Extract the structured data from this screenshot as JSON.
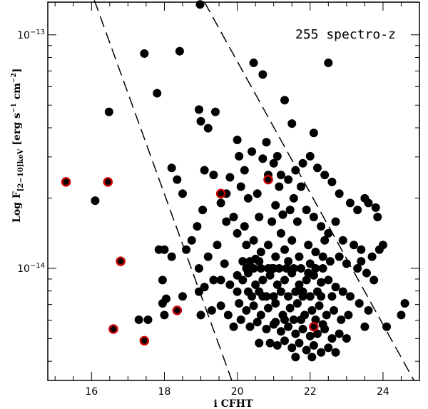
{
  "chart_data": {
    "type": "scatter",
    "title": "",
    "annotation": "255 spectro-z",
    "xlabel": "i CFHT",
    "ylabel": {
      "prefix": "Log F",
      "subscript": "[2−10]keV",
      "units": "[erg s",
      "exp1": "−1",
      "units2": " cm",
      "exp2": "−2",
      "close": "]"
    },
    "xlim": [
      14.8,
      25.0
    ],
    "ylim_log10": [
      -14.48,
      -12.86
    ],
    "x_ticks": [
      {
        "value": 16,
        "label": "16"
      },
      {
        "value": 18,
        "label": "18"
      },
      {
        "value": 20,
        "label": "20"
      },
      {
        "value": 22,
        "label": "22"
      },
      {
        "value": 24,
        "label": "24"
      }
    ],
    "y_ticks": [
      {
        "value_log10": -13,
        "base": "10",
        "exp": "−13"
      },
      {
        "value_log10": -14,
        "base": "10",
        "exp": "−14"
      }
    ],
    "colors": {
      "point": "#000000",
      "highlight": "#cc0000",
      "axis": "#000000"
    },
    "dashed_lines": [
      {
        "name": "lower-limit-line",
        "points": [
          [
            14.8,
            -12.3
          ],
          [
            19.85,
            -14.48
          ]
        ]
      },
      {
        "name": "upper-limit-line",
        "points": [
          [
            19.1,
            -12.86
          ],
          [
            24.85,
            -14.48
          ]
        ]
      }
    ],
    "series": [
      {
        "name": "black",
        "points": [
          [
            18.98,
            -12.87
          ],
          [
            16.48,
            -13.33
          ],
          [
            22.1,
            -13.42
          ],
          [
            17.45,
            -13.08
          ],
          [
            18.42,
            -13.07
          ],
          [
            22.5,
            -13.12
          ],
          [
            20.45,
            -13.12
          ],
          [
            20.7,
            -13.17
          ],
          [
            17.8,
            -13.25
          ],
          [
            18.95,
            -13.32
          ],
          [
            19.0,
            -13.37
          ],
          [
            19.4,
            -13.33
          ],
          [
            21.3,
            -13.28
          ],
          [
            19.2,
            -13.4
          ],
          [
            20.0,
            -13.45
          ],
          [
            21.5,
            -13.38
          ],
          [
            16.1,
            -13.71
          ],
          [
            18.2,
            -13.57
          ],
          [
            18.35,
            -13.62
          ],
          [
            18.5,
            -13.68
          ],
          [
            19.1,
            -13.58
          ],
          [
            19.35,
            -13.6
          ],
          [
            19.05,
            -13.75
          ],
          [
            18.9,
            -13.82
          ],
          [
            19.55,
            -13.72
          ],
          [
            19.8,
            -13.61
          ],
          [
            20.2,
            -13.58
          ],
          [
            20.4,
            -13.5
          ],
          [
            20.8,
            -13.46
          ],
          [
            20.7,
            -13.53
          ],
          [
            21.0,
            -13.55
          ],
          [
            21.2,
            -13.6
          ],
          [
            21.4,
            -13.62
          ],
          [
            21.6,
            -13.58
          ],
          [
            21.8,
            -13.55
          ],
          [
            22.0,
            -13.52
          ],
          [
            22.2,
            -13.57
          ],
          [
            22.4,
            -13.6
          ],
          [
            22.6,
            -13.63
          ],
          [
            22.8,
            -13.68
          ],
          [
            23.1,
            -13.72
          ],
          [
            23.3,
            -13.75
          ],
          [
            23.5,
            -13.7
          ],
          [
            23.6,
            -13.72
          ],
          [
            23.8,
            -13.74
          ],
          [
            20.1,
            -13.65
          ],
          [
            20.3,
            -13.7
          ],
          [
            20.55,
            -13.68
          ],
          [
            19.7,
            -13.8
          ],
          [
            19.9,
            -13.78
          ],
          [
            20.6,
            -13.78
          ],
          [
            21.05,
            -13.73
          ],
          [
            21.25,
            -13.77
          ],
          [
            21.45,
            -13.75
          ],
          [
            21.65,
            -13.8
          ],
          [
            21.9,
            -13.75
          ],
          [
            22.1,
            -13.78
          ],
          [
            22.3,
            -13.82
          ],
          [
            22.5,
            -13.85
          ],
          [
            22.7,
            -13.8
          ],
          [
            22.9,
            -13.88
          ],
          [
            23.2,
            -13.9
          ],
          [
            23.4,
            -13.92
          ],
          [
            23.9,
            -13.92
          ],
          [
            24.0,
            -13.9
          ],
          [
            23.7,
            -13.95
          ],
          [
            17.85,
            -13.92
          ],
          [
            18.0,
            -13.92
          ],
          [
            17.95,
            -14.05
          ],
          [
            18.75,
            -13.88
          ],
          [
            18.6,
            -13.92
          ],
          [
            18.2,
            -13.95
          ],
          [
            19.2,
            -13.95
          ],
          [
            19.45,
            -13.9
          ],
          [
            19.65,
            -13.98
          ],
          [
            20.0,
            -13.85
          ],
          [
            20.25,
            -13.9
          ],
          [
            20.45,
            -13.88
          ],
          [
            20.65,
            -13.93
          ],
          [
            20.85,
            -13.9
          ],
          [
            21.05,
            -13.95
          ],
          [
            21.3,
            -13.92
          ],
          [
            21.5,
            -13.88
          ],
          [
            21.7,
            -13.95
          ],
          [
            21.95,
            -13.9
          ],
          [
            22.15,
            -13.93
          ],
          [
            22.35,
            -13.95
          ],
          [
            22.55,
            -13.97
          ],
          [
            22.8,
            -13.95
          ],
          [
            23.0,
            -13.98
          ],
          [
            23.3,
            -14.0
          ],
          [
            23.55,
            -14.02
          ],
          [
            23.75,
            -14.05
          ],
          [
            17.95,
            -14.15
          ],
          [
            18.05,
            -14.13
          ],
          [
            18.95,
            -14.1
          ],
          [
            19.1,
            -14.08
          ],
          [
            19.35,
            -14.05
          ],
          [
            19.55,
            -14.05
          ],
          [
            19.8,
            -14.07
          ],
          [
            20.0,
            -14.03
          ],
          [
            20.15,
            -14.05
          ],
          [
            20.3,
            -14.02
          ],
          [
            20.5,
            -14.07
          ],
          [
            20.7,
            -14.05
          ],
          [
            20.9,
            -14.03
          ],
          [
            21.1,
            -14.07
          ],
          [
            21.3,
            -14.05
          ],
          [
            21.5,
            -14.02
          ],
          [
            21.7,
            -14.07
          ],
          [
            21.9,
            -14.05
          ],
          [
            22.1,
            -14.03
          ],
          [
            22.3,
            -14.06
          ],
          [
            22.5,
            -14.05
          ],
          [
            22.7,
            -14.08
          ],
          [
            22.9,
            -14.1
          ],
          [
            23.1,
            -14.12
          ],
          [
            23.35,
            -14.15
          ],
          [
            23.6,
            -14.18
          ],
          [
            24.6,
            -14.15
          ],
          [
            24.5,
            -14.2
          ],
          [
            19.0,
            -14.2
          ],
          [
            19.3,
            -14.18
          ],
          [
            19.55,
            -14.16
          ],
          [
            19.75,
            -14.2
          ],
          [
            20.05,
            -14.15
          ],
          [
            20.25,
            -14.18
          ],
          [
            20.45,
            -14.16
          ],
          [
            20.65,
            -14.2
          ],
          [
            20.85,
            -14.17
          ],
          [
            21.05,
            -14.15
          ],
          [
            21.25,
            -14.2
          ],
          [
            21.45,
            -14.17
          ],
          [
            21.65,
            -14.15
          ],
          [
            21.85,
            -14.2
          ],
          [
            22.05,
            -14.18
          ],
          [
            22.25,
            -14.16
          ],
          [
            22.45,
            -14.2
          ],
          [
            22.65,
            -14.18
          ],
          [
            22.85,
            -14.22
          ],
          [
            23.05,
            -14.2
          ],
          [
            23.5,
            -14.25
          ],
          [
            24.1,
            -14.25
          ],
          [
            17.3,
            -14.22
          ],
          [
            17.55,
            -14.22
          ],
          [
            18.0,
            -14.2
          ],
          [
            18.5,
            -14.12
          ],
          [
            18.95,
            -14.0
          ],
          [
            19.9,
            -14.25
          ],
          [
            20.1,
            -14.22
          ],
          [
            20.35,
            -14.25
          ],
          [
            20.55,
            -14.23
          ],
          [
            20.8,
            -14.26
          ],
          [
            21.0,
            -14.24
          ],
          [
            21.2,
            -14.27
          ],
          [
            21.4,
            -14.25
          ],
          [
            21.6,
            -14.28
          ],
          [
            21.8,
            -14.26
          ],
          [
            22.0,
            -14.29
          ],
          [
            22.2,
            -14.28
          ],
          [
            22.4,
            -14.26
          ],
          [
            22.6,
            -14.3
          ],
          [
            22.8,
            -14.28
          ],
          [
            23.0,
            -14.3
          ],
          [
            20.9,
            -14.32
          ],
          [
            21.1,
            -14.33
          ],
          [
            21.3,
            -14.31
          ],
          [
            21.5,
            -14.34
          ],
          [
            21.7,
            -14.32
          ],
          [
            21.9,
            -14.35
          ],
          [
            22.1,
            -14.33
          ],
          [
            22.3,
            -14.36
          ],
          [
            22.5,
            -14.34
          ],
          [
            22.7,
            -14.36
          ],
          [
            21.6,
            -14.38
          ],
          [
            22.05,
            -14.38
          ],
          [
            20.2,
            -13.82
          ],
          [
            20.5,
            -13.96
          ],
          [
            20.3,
            -14.1
          ],
          [
            20.7,
            -14.12
          ],
          [
            21.0,
            -14.0
          ],
          [
            21.2,
            -13.85
          ],
          [
            21.4,
            -13.97
          ],
          [
            21.6,
            -14.1
          ],
          [
            21.8,
            -14.12
          ],
          [
            22.0,
            -13.98
          ],
          [
            22.2,
            -14.1
          ],
          [
            22.4,
            -13.88
          ],
          [
            22.6,
            -14.12
          ],
          [
            20.95,
            -13.8
          ],
          [
            21.15,
            -13.65
          ],
          [
            21.55,
            -13.7
          ],
          [
            21.75,
            -13.65
          ],
          [
            20.15,
            -13.97
          ],
          [
            20.35,
            -13.97
          ],
          [
            20.6,
            -13.97
          ],
          [
            20.0,
            -14.1
          ],
          [
            20.4,
            -14.12
          ],
          [
            20.6,
            -14.1
          ],
          [
            20.8,
            -14.12
          ],
          [
            21.0,
            -14.12
          ],
          [
            21.2,
            -14.1
          ],
          [
            21.4,
            -14.12
          ],
          [
            21.8,
            -14.1
          ],
          [
            22.0,
            -14.12
          ],
          [
            22.3,
            -14.12
          ],
          [
            21.05,
            -14.23
          ],
          [
            21.3,
            -14.22
          ],
          [
            21.55,
            -14.22
          ],
          [
            21.75,
            -14.22
          ],
          [
            22.15,
            -14.22
          ],
          [
            22.35,
            -14.24
          ],
          [
            20.6,
            -14.32
          ],
          [
            23.4,
            -13.97
          ],
          [
            23.85,
            -13.78
          ],
          [
            20.85,
            -13.6
          ],
          [
            20.05,
            -13.52
          ],
          [
            21.1,
            -13.52
          ],
          [
            19.7,
            -13.68
          ],
          [
            20.95,
            -14.0
          ],
          [
            21.15,
            -14.0
          ],
          [
            21.35,
            -14.0
          ],
          [
            21.55,
            -14.0
          ],
          [
            21.75,
            -14.0
          ],
          [
            21.95,
            -14.02
          ],
          [
            20.25,
            -14.0
          ],
          [
            20.45,
            -14.0
          ],
          [
            20.65,
            -14.0
          ],
          [
            20.85,
            -14.0
          ],
          [
            22.15,
            -14.0
          ],
          [
            22.35,
            -14.0
          ]
        ]
      },
      {
        "name": "highlighted",
        "points": [
          [
            15.3,
            -13.63
          ],
          [
            16.45,
            -13.63
          ],
          [
            19.55,
            -13.68
          ],
          [
            20.85,
            -13.62
          ],
          [
            16.8,
            -13.97
          ],
          [
            18.35,
            -14.18
          ],
          [
            16.6,
            -14.26
          ],
          [
            17.45,
            -14.31
          ],
          [
            22.1,
            -14.25
          ]
        ]
      }
    ]
  }
}
